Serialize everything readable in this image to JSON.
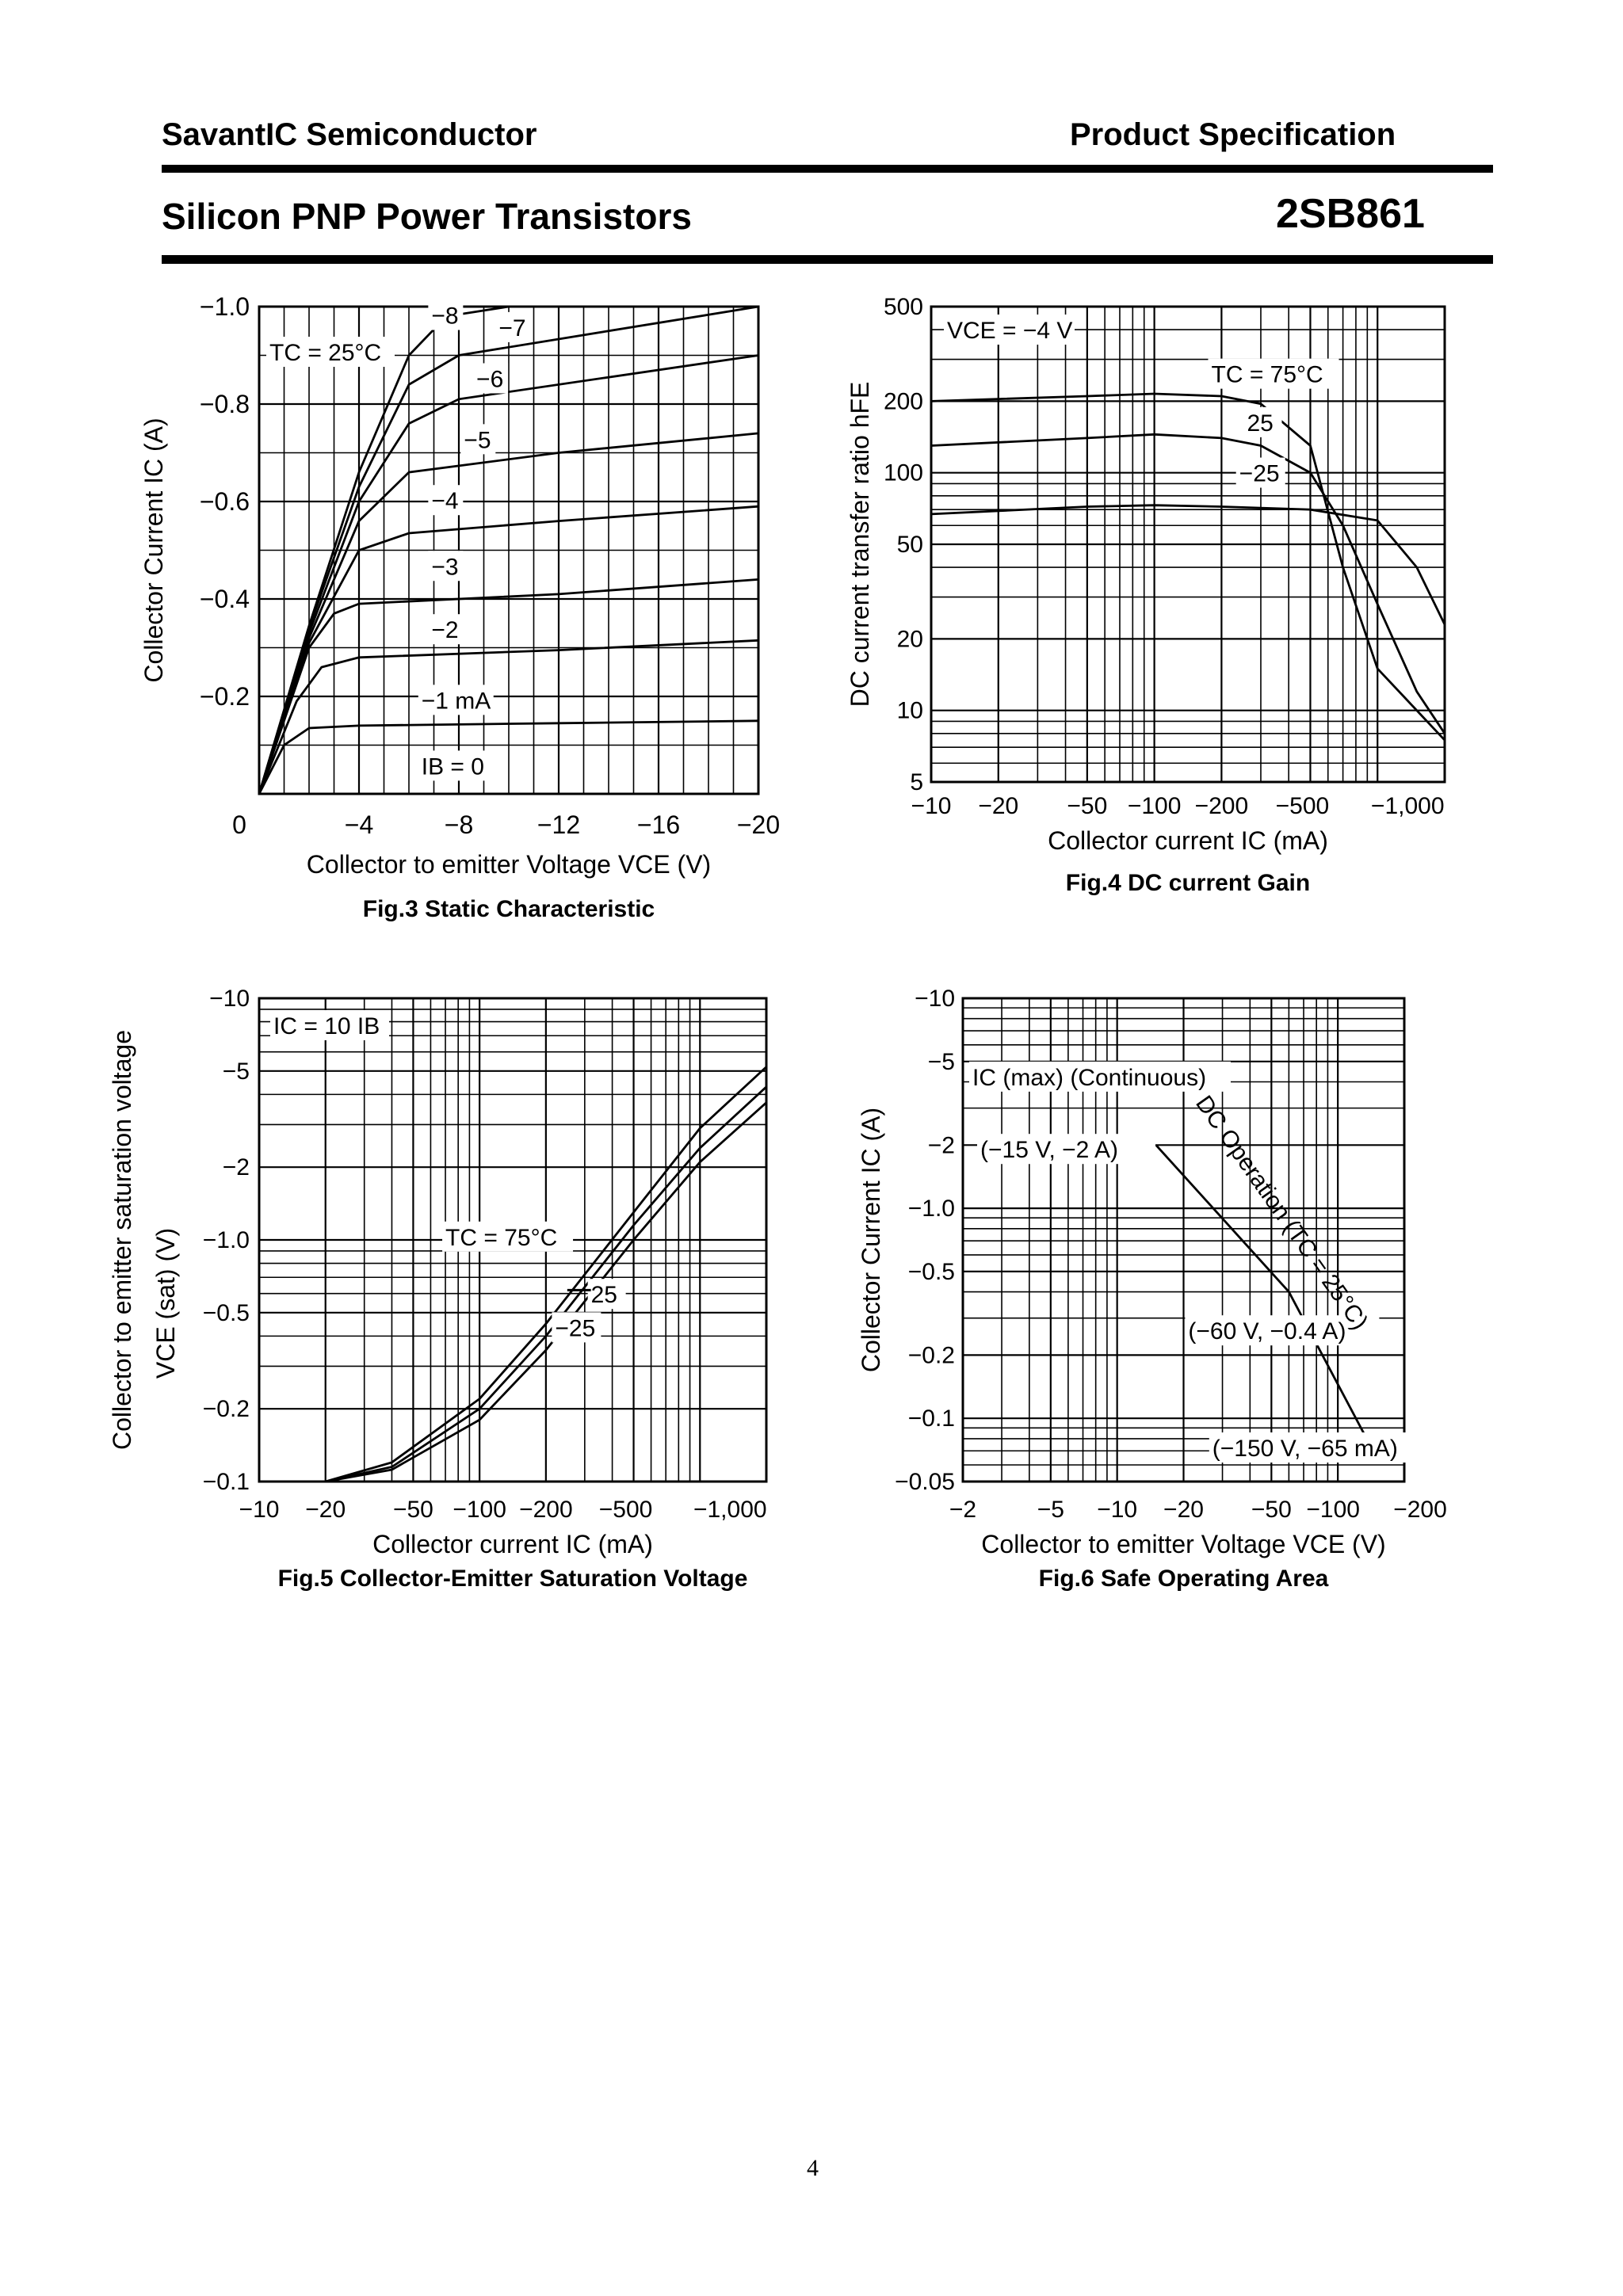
{
  "header": {
    "company": "SavantIC Semiconductor",
    "doc_type": "Product Specification",
    "product": "Silicon PNP Power Transistors",
    "part_number": "2SB861"
  },
  "page_number": "4",
  "chart_data": [
    {
      "id": "fig3",
      "type": "line",
      "caption": "Fig.3 Static Characteristic",
      "xlabel": "Collector to emitter Voltage  VCE  (V)",
      "ylabel": "Collector Current  IC  (A)",
      "x_ticks": [
        "0",
        "−4",
        "−8",
        "−12",
        "−16",
        "−20"
      ],
      "y_ticks": [
        "−1.0",
        "−0.8",
        "−0.6",
        "−0.4",
        "−0.2"
      ],
      "xlim": [
        0,
        -20
      ],
      "ylim": [
        0,
        -1.0
      ],
      "annotation": "TC = 25°C",
      "series": [
        {
          "name": "IB = 0",
          "points": [
            [
              0,
              0
            ],
            [
              -20,
              0
            ]
          ]
        },
        {
          "name": "−1 mA",
          "points": [
            [
              0,
              0
            ],
            [
              -1,
              -0.1
            ],
            [
              -2,
              -0.135
            ],
            [
              -4,
              -0.14
            ],
            [
              -12,
              -0.145
            ],
            [
              -20,
              -0.15
            ]
          ]
        },
        {
          "name": "−2",
          "points": [
            [
              0,
              0
            ],
            [
              -1.5,
              -0.19
            ],
            [
              -2.5,
              -0.26
            ],
            [
              -4,
              -0.28
            ],
            [
              -12,
              -0.295
            ],
            [
              -20,
              -0.315
            ]
          ]
        },
        {
          "name": "−3",
          "points": [
            [
              0,
              0
            ],
            [
              -2,
              -0.3
            ],
            [
              -3,
              -0.37
            ],
            [
              -4,
              -0.39
            ],
            [
              -12,
              -0.41
            ],
            [
              -20,
              -0.44
            ]
          ]
        },
        {
          "name": "−4",
          "points": [
            [
              0,
              0
            ],
            [
              -2,
              -0.31
            ],
            [
              -4,
              -0.5
            ],
            [
              -6,
              -0.535
            ],
            [
              -12,
              -0.56
            ],
            [
              -20,
              -0.59
            ]
          ]
        },
        {
          "name": "−5",
          "points": [
            [
              0,
              0
            ],
            [
              -2,
              -0.32
            ],
            [
              -4,
              -0.56
            ],
            [
              -6,
              -0.66
            ],
            [
              -12,
              -0.7
            ],
            [
              -20,
              -0.74
            ]
          ]
        },
        {
          "name": "−6",
          "points": [
            [
              0,
              0
            ],
            [
              -2,
              -0.33
            ],
            [
              -4,
              -0.6
            ],
            [
              -6,
              -0.76
            ],
            [
              -8,
              -0.81
            ],
            [
              -20,
              -0.9
            ]
          ]
        },
        {
          "name": "−7",
          "points": [
            [
              0,
              0
            ],
            [
              -2,
              -0.34
            ],
            [
              -4,
              -0.63
            ],
            [
              -6,
              -0.84
            ],
            [
              -8,
              -0.9
            ],
            [
              -20,
              -1.0
            ]
          ]
        },
        {
          "name": "−8",
          "points": [
            [
              0,
              0
            ],
            [
              -2,
              -0.345
            ],
            [
              -4,
              -0.66
            ],
            [
              -6,
              -0.9
            ],
            [
              -7.5,
              -0.98
            ],
            [
              -10,
              -1.0
            ]
          ]
        }
      ]
    },
    {
      "id": "fig4",
      "type": "line",
      "caption": "Fig.4   DC current Gain",
      "xlabel": "Collector current  IC  (mA)",
      "ylabel": "DC current transfer ratio  hFE",
      "x_scale": "log",
      "y_scale": "log",
      "x_ticks": [
        "−10",
        "−20",
        "−50",
        "−100",
        "−200",
        "−500",
        "−1,000"
      ],
      "y_ticks": [
        "500",
        "200",
        "100",
        "50",
        "20",
        "10",
        "5"
      ],
      "xlim": [
        -10,
        -2000
      ],
      "ylim": [
        5,
        500
      ],
      "annotation": "VCE = −4 V",
      "series": [
        {
          "name": "TC = 75°C",
          "points": [
            [
              -10,
              200
            ],
            [
              -50,
              210
            ],
            [
              -100,
              215
            ],
            [
              -200,
              210
            ],
            [
              -300,
              195
            ],
            [
              -500,
              130
            ],
            [
              -700,
              40
            ],
            [
              -1000,
              15
            ],
            [
              -2000,
              7.5
            ]
          ]
        },
        {
          "name": "25",
          "points": [
            [
              -10,
              130
            ],
            [
              -50,
              140
            ],
            [
              -100,
              145
            ],
            [
              -200,
              140
            ],
            [
              -300,
              130
            ],
            [
              -500,
              100
            ],
            [
              -700,
              60
            ],
            [
              -1000,
              28
            ],
            [
              -1500,
              12
            ],
            [
              -2000,
              8
            ]
          ]
        },
        {
          "name": "−25",
          "points": [
            [
              -10,
              67
            ],
            [
              -50,
              72
            ],
            [
              -100,
              73
            ],
            [
              -200,
              72
            ],
            [
              -500,
              70
            ],
            [
              -1000,
              63
            ],
            [
              -1500,
              40
            ],
            [
              -2000,
              23
            ]
          ]
        }
      ]
    },
    {
      "id": "fig5",
      "type": "line",
      "caption": "Fig.5  Collector-Emitter Saturation Voltage",
      "xlabel": "Collector current  IC  (mA)",
      "ylabel": "Collector to emitter saturation voltage  VCE (sat)  (V)",
      "x_scale": "log",
      "y_scale": "log",
      "x_ticks": [
        "−10",
        "−20",
        "−50",
        "−100",
        "−200",
        "−500",
        "−1,000"
      ],
      "y_ticks": [
        "−10",
        "−5",
        "−2",
        "−1.0",
        "−0.5",
        "−0.2",
        "−0.1"
      ],
      "xlim": [
        -10,
        -2000
      ],
      "ylim": [
        -0.1,
        -10
      ],
      "annotation": "IC = 10 IB",
      "series": [
        {
          "name": "TC = 75°C",
          "points": [
            [
              -20,
              -0.1
            ],
            [
              -40,
              -0.12
            ],
            [
              -100,
              -0.22
            ],
            [
              -200,
              -0.45
            ],
            [
              -500,
              -1.3
            ],
            [
              -1000,
              -2.9
            ],
            [
              -2000,
              -5.2
            ]
          ]
        },
        {
          "name": "25",
          "points": [
            [
              -20,
              -0.1
            ],
            [
              -40,
              -0.115
            ],
            [
              -100,
              -0.2
            ],
            [
              -200,
              -0.4
            ],
            [
              -500,
              -1.15
            ],
            [
              -1000,
              -2.4
            ],
            [
              -2000,
              -4.3
            ]
          ]
        },
        {
          "name": "−25",
          "points": [
            [
              -20,
              -0.1
            ],
            [
              -40,
              -0.112
            ],
            [
              -100,
              -0.18
            ],
            [
              -200,
              -0.35
            ],
            [
              -500,
              -1.0
            ],
            [
              -1000,
              -2.1
            ],
            [
              -2000,
              -3.7
            ]
          ]
        }
      ]
    },
    {
      "id": "fig6",
      "type": "line",
      "caption": "Fig.6   Safe Operating Area",
      "xlabel": "Collector to emitter Voltage  VCE  (V)",
      "ylabel": "Collector Current  IC  (A)",
      "x_scale": "log",
      "y_scale": "log",
      "x_ticks": [
        "−2",
        "−5",
        "−10",
        "−20",
        "−50",
        "−100",
        "−200"
      ],
      "y_ticks": [
        "−10",
        "−5",
        "−2",
        "−1.0",
        "−0.5",
        "−0.2",
        "−0.1",
        "−0.05"
      ],
      "xlim": [
        -2,
        -200
      ],
      "ylim": [
        -0.05,
        -10
      ],
      "annotations": [
        "IC (max) (Continuous)",
        "(−15 V, −2 A)",
        "(−60 V, −0.4 A)",
        "(−150 V, −65 mA)",
        "DC Operation (TC = 25°C)"
      ],
      "series": [
        {
          "name": "DC Operation (TC = 25°C)",
          "points": [
            [
              -15,
              -2
            ],
            [
              -60,
              -0.4
            ],
            [
              -150,
              -0.065
            ]
          ]
        }
      ]
    }
  ]
}
